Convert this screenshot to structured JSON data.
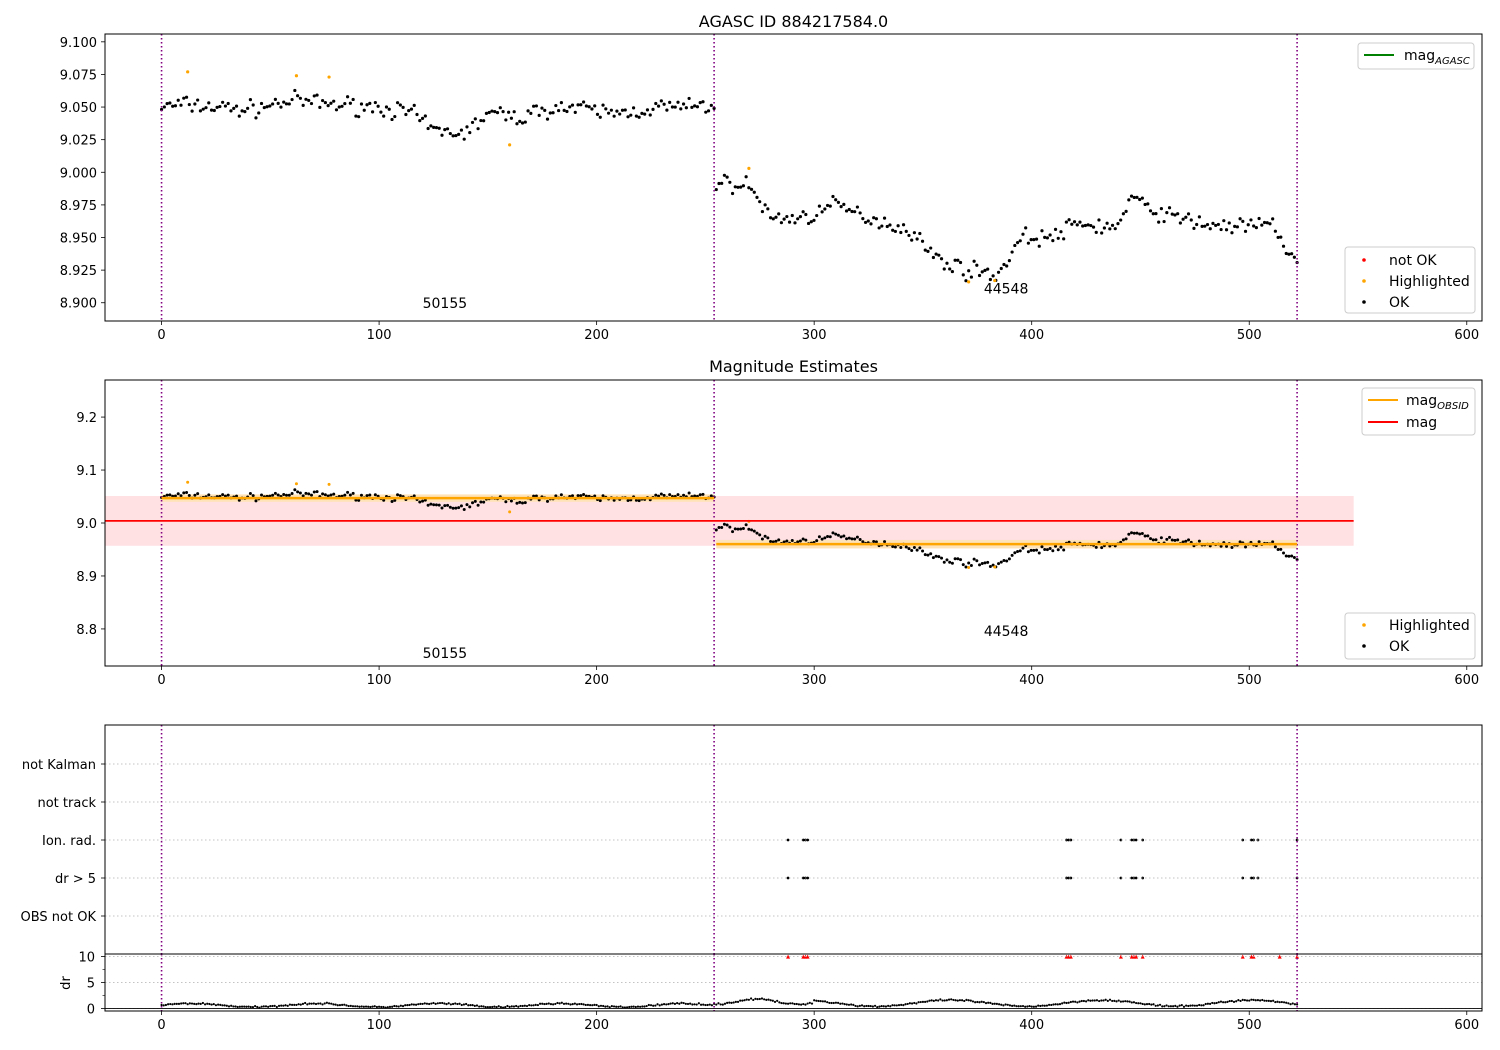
{
  "chart_data": [
    {
      "type": "scatter",
      "title": "AGASC ID 884217584.0",
      "xlim": [
        -26,
        607
      ],
      "ylim": [
        8.886,
        9.106
      ],
      "xticks": [
        0,
        100,
        200,
        300,
        400,
        500,
        600
      ],
      "yticks": [
        "8.900",
        "8.925",
        "8.950",
        "8.975",
        "9.000",
        "9.025",
        "9.050",
        "9.075",
        "9.100"
      ],
      "obs_boundaries": [
        0,
        254,
        522
      ],
      "obs_labels": [
        {
          "text": "50155",
          "x": 120,
          "y": 8.896
        },
        {
          "text": "44548",
          "x": 378,
          "y": 8.907
        }
      ],
      "legend_top": [
        {
          "label": "mag",
          "sub": "AGASC",
          "color": "#008000"
        }
      ],
      "legend_bottom": [
        {
          "label": "not OK",
          "color": "#ff0000"
        },
        {
          "label": "Highlighted",
          "color": "#ffa500"
        },
        {
          "label": "OK",
          "color": "#000000"
        }
      ],
      "series": [
        {
          "name": "OK",
          "segments": [
            {
              "x0": 0,
              "x1": 254,
              "n": 200,
              "levels": [
                [
                  0,
                  9.05
                ],
                [
                  10,
                  9.052
                ],
                [
                  25,
                  9.05
                ],
                [
                  40,
                  9.048
                ],
                [
                  60,
                  9.055
                ],
                [
                  80,
                  9.052
                ],
                [
                  100,
                  9.05
                ],
                [
                  115,
                  9.045
                ],
                [
                  125,
                  9.032
                ],
                [
                  140,
                  9.03
                ],
                [
                  150,
                  9.045
                ],
                [
                  165,
                  9.042
                ],
                [
                  180,
                  9.05
                ],
                [
                  195,
                  9.048
                ],
                [
                  210,
                  9.045
                ],
                [
                  230,
                  9.05
                ],
                [
                  254,
                  9.05
                ]
              ],
              "jitter": 0.008
            },
            {
              "x0": 255,
              "x1": 522,
              "n": 215,
              "levels": [
                [
                  255,
                  8.992
                ],
                [
                  270,
                  8.99
                ],
                [
                  280,
                  8.965
                ],
                [
                  295,
                  8.965
                ],
                [
                  310,
                  8.975
                ],
                [
                  320,
                  8.968
                ],
                [
                  335,
                  8.96
                ],
                [
                  345,
                  8.955
                ],
                [
                  355,
                  8.935
                ],
                [
                  370,
                  8.925
                ],
                [
                  385,
                  8.922
                ],
                [
                  395,
                  8.95
                ],
                [
                  410,
                  8.95
                ],
                [
                  420,
                  8.96
                ],
                [
                  440,
                  8.958
                ],
                [
                  445,
                  8.98
                ],
                [
                  460,
                  8.968
                ],
                [
                  480,
                  8.96
                ],
                [
                  500,
                  8.958
                ],
                [
                  512,
                  8.96
                ],
                [
                  517,
                  8.94
                ],
                [
                  522,
                  8.93
                ]
              ],
              "jitter": 0.008
            }
          ]
        },
        {
          "name": "Highlighted",
          "points": [
            [
              12,
              9.077
            ],
            [
              62,
              9.074
            ],
            [
              77,
              9.073
            ],
            [
              160,
              9.021
            ],
            [
              270,
              9.003
            ],
            [
              371,
              8.916
            ],
            [
              383,
              8.917
            ]
          ]
        }
      ]
    },
    {
      "type": "scatter",
      "title": "Magnitude Estimates",
      "xlim": [
        -26,
        607
      ],
      "ylim": [
        8.73,
        9.27
      ],
      "xticks": [
        0,
        100,
        200,
        300,
        400,
        500,
        600
      ],
      "yticks": [
        "8.8",
        "8.9",
        "9.0",
        "9.1",
        "9.2"
      ],
      "obs_boundaries": [
        0,
        254,
        522
      ],
      "obs_labels": [
        {
          "text": "50155",
          "x": 120,
          "y": 8.745
        },
        {
          "text": "44548",
          "x": 378,
          "y": 8.787
        }
      ],
      "mag": 9.004,
      "mag_band": [
        8.957,
        9.051
      ],
      "mag_line_x": [
        -26,
        548
      ],
      "mag_obsid": [
        {
          "x0": 0,
          "x1": 254,
          "value": 9.047,
          "band": [
            9.04,
            9.054
          ]
        },
        {
          "x0": 255,
          "x1": 522,
          "value": 8.96,
          "band": [
            8.952,
            8.968
          ]
        }
      ],
      "legend_top": [
        {
          "label": "mag",
          "sub": "OBSID",
          "color": "#ffa500"
        },
        {
          "label": "mag",
          "sub": "",
          "color": "#ff0000"
        }
      ],
      "legend_bottom": [
        {
          "label": "Highlighted",
          "color": "#ffa500"
        },
        {
          "label": "OK",
          "color": "#000000"
        }
      ]
    },
    {
      "type": "scatter",
      "title": "",
      "categories": [
        "not Kalman",
        "not track",
        "Ion. rad.",
        "dr > 5",
        "OBS not OK"
      ],
      "xlim": [
        -26,
        607
      ],
      "flagged_x": {
        "Ion. rad.": [
          288,
          295,
          296,
          297,
          416,
          417,
          418,
          441,
          446,
          447,
          448,
          451,
          497,
          501,
          502,
          504,
          522
        ],
        "dr > 5": [
          288,
          295,
          296,
          297,
          416,
          417,
          418,
          441,
          446,
          447,
          448,
          451,
          497,
          501,
          502,
          504,
          522
        ]
      }
    },
    {
      "type": "scatter",
      "title": "",
      "ylabel": "dr",
      "xlim": [
        -26,
        607
      ],
      "ylim": [
        -0.5,
        10.5
      ],
      "xticks": [
        0,
        100,
        200,
        300,
        400,
        500,
        600
      ],
      "yticks": [
        "0",
        "5",
        "10"
      ],
      "dr_high_x": [
        288,
        295,
        296,
        297,
        416,
        417,
        418,
        441,
        446,
        447,
        448,
        451,
        497,
        501,
        502,
        514,
        522
      ]
    }
  ]
}
